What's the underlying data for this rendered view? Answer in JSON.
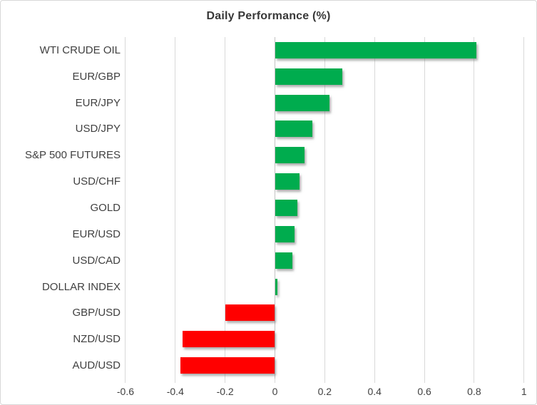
{
  "chart_data": {
    "type": "bar",
    "orientation": "horizontal",
    "title": "Daily Performance (%)",
    "categories": [
      "WTI CRUDE OIL",
      "EUR/GBP",
      "EUR/JPY",
      "USD/JPY",
      "S&P 500 FUTURES",
      "USD/CHF",
      "GOLD",
      "EUR/USD",
      "USD/CAD",
      "DOLLAR INDEX",
      "GBP/USD",
      "NZD/USD",
      "AUD/USD"
    ],
    "values": [
      0.81,
      0.27,
      0.22,
      0.15,
      0.12,
      0.1,
      0.09,
      0.08,
      0.07,
      0.01,
      -0.2,
      -0.37,
      -0.38
    ],
    "xlabel": "",
    "ylabel": "",
    "xlim": [
      -0.6,
      1.0
    ],
    "xticks": [
      -0.6,
      -0.4,
      -0.2,
      0,
      0.2,
      0.4,
      0.6,
      0.8,
      1
    ],
    "xtick_labels": [
      "-0.6",
      "-0.4",
      "-0.2",
      "0",
      "0.2",
      "0.4",
      "0.6",
      "0.8",
      "1"
    ],
    "grid": true,
    "legend": false,
    "colors": {
      "positive": "#00AC4E",
      "negative": "#FF0000",
      "gridline": "#D9D9D9",
      "zero_axis": "#C3C3C3",
      "text": "#404040",
      "title": "#383838"
    }
  }
}
